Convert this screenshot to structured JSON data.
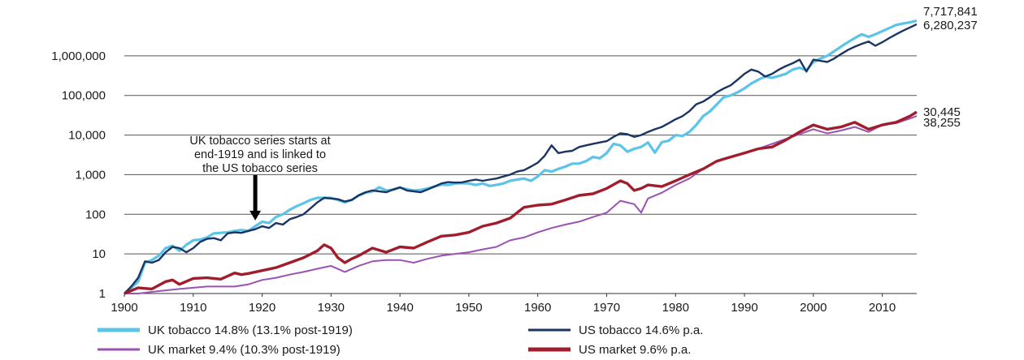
{
  "chart_data": {
    "type": "line",
    "yscale": "log",
    "ylim": [
      1,
      10000000
    ],
    "xlim": [
      1900,
      2015
    ],
    "grid": "horizontal",
    "legend_placement": "bottom",
    "x_ticks": [
      1900,
      1910,
      1920,
      1930,
      1940,
      1950,
      1960,
      1970,
      1980,
      1990,
      2000,
      2010
    ],
    "y_ticks": [
      {
        "value": 1,
        "label": "1"
      },
      {
        "value": 10,
        "label": "10"
      },
      {
        "value": 100,
        "label": "100"
      },
      {
        "value": 1000,
        "label": "1,000"
      },
      {
        "value": 10000,
        "label": "10,000"
      },
      {
        "value": 100000,
        "label": "100,000"
      },
      {
        "value": 1000000,
        "label": "1,000,000"
      }
    ],
    "annotation": {
      "lines": [
        "UK tobacco series starts at",
        "end-1919 and is linked to",
        "the US tobacco series"
      ],
      "arrow_x": 1919,
      "arrow_y": 70
    },
    "series": [
      {
        "name": "UK tobacco 14.8% (13.1% post-1919)",
        "color": "#5bc4e8",
        "end_label": "7,717,841",
        "x": [
          1900,
          1901,
          1902,
          1903,
          1904,
          1905,
          1906,
          1907,
          1908,
          1909,
          1910,
          1911,
          1912,
          1913,
          1914,
          1915,
          1916,
          1917,
          1918,
          1919,
          1920,
          1921,
          1922,
          1923,
          1924,
          1925,
          1926,
          1927,
          1928,
          1929,
          1930,
          1931,
          1932,
          1933,
          1934,
          1935,
          1936,
          1937,
          1938,
          1939,
          1940,
          1941,
          1942,
          1943,
          1944,
          1945,
          1946,
          1947,
          1948,
          1949,
          1950,
          1951,
          1952,
          1953,
          1954,
          1955,
          1956,
          1957,
          1958,
          1959,
          1960,
          1961,
          1962,
          1963,
          1964,
          1965,
          1966,
          1967,
          1968,
          1969,
          1970,
          1971,
          1972,
          1973,
          1974,
          1975,
          1976,
          1977,
          1978,
          1979,
          1980,
          1981,
          1982,
          1983,
          1984,
          1985,
          1986,
          1987,
          1988,
          1989,
          1990,
          1991,
          1992,
          1993,
          1994,
          1995,
          1996,
          1997,
          1998,
          1999,
          2000,
          2001,
          2002,
          2003,
          2004,
          2005,
          2006,
          2007,
          2008,
          2009,
          2010,
          2011,
          2012,
          2013,
          2014,
          2015
        ],
        "values": [
          1,
          1.4,
          2,
          6,
          7,
          9,
          14,
          16,
          12,
          17,
          22,
          23,
          26,
          33,
          34,
          35,
          38,
          40,
          38,
          50,
          65,
          60,
          85,
          100,
          130,
          160,
          190,
          230,
          260,
          260,
          260,
          230,
          200,
          230,
          300,
          350,
          380,
          480,
          400,
          420,
          470,
          430,
          400,
          410,
          450,
          500,
          560,
          550,
          600,
          610,
          600,
          550,
          600,
          520,
          550,
          600,
          700,
          750,
          800,
          700,
          900,
          1300,
          1200,
          1400,
          1600,
          1900,
          1900,
          2200,
          2800,
          2600,
          3500,
          6000,
          5500,
          3800,
          4500,
          5000,
          6500,
          3600,
          6600,
          7200,
          10000,
          9500,
          12000,
          18000,
          30000,
          40000,
          60000,
          90000,
          100000,
          120000,
          150000,
          200000,
          250000,
          300000,
          280000,
          310000,
          350000,
          450000,
          500000,
          430000,
          700000,
          850000,
          1000000,
          1300000,
          1700000,
          2200000,
          2800000,
          3500000,
          3000000,
          3500000,
          4200000,
          5000000,
          6000000,
          6500000,
          7000000,
          7717841
        ]
      },
      {
        "name": "US tobacco 14.6% p.a.",
        "color": "#1a3563",
        "end_label": "6,280,237",
        "x": [
          1900,
          1901,
          1902,
          1903,
          1904,
          1905,
          1906,
          1907,
          1908,
          1909,
          1910,
          1911,
          1912,
          1913,
          1914,
          1915,
          1916,
          1917,
          1918,
          1919,
          1920,
          1921,
          1922,
          1923,
          1924,
          1925,
          1926,
          1927,
          1928,
          1929,
          1930,
          1931,
          1932,
          1933,
          1934,
          1935,
          1936,
          1937,
          1938,
          1939,
          1940,
          1941,
          1942,
          1943,
          1944,
          1945,
          1946,
          1947,
          1948,
          1949,
          1950,
          1951,
          1952,
          1953,
          1954,
          1955,
          1956,
          1957,
          1958,
          1959,
          1960,
          1961,
          1962,
          1963,
          1964,
          1965,
          1966,
          1967,
          1968,
          1969,
          1970,
          1971,
          1972,
          1973,
          1974,
          1975,
          1976,
          1977,
          1978,
          1979,
          1980,
          1981,
          1982,
          1983,
          1984,
          1985,
          1986,
          1987,
          1988,
          1989,
          1990,
          1991,
          1992,
          1993,
          1994,
          1995,
          1996,
          1997,
          1998,
          1999,
          2000,
          2001,
          2002,
          2003,
          2004,
          2005,
          2006,
          2007,
          2008,
          2009,
          2010,
          2011,
          2012,
          2013,
          2014,
          2015
        ],
        "values": [
          1,
          1.5,
          2.5,
          6.5,
          6,
          7,
          11,
          15,
          14,
          11,
          14,
          20,
          24,
          25,
          22,
          33,
          35,
          34,
          38,
          42,
          50,
          45,
          60,
          55,
          75,
          85,
          100,
          140,
          200,
          260,
          250,
          240,
          210,
          230,
          300,
          360,
          400,
          380,
          360,
          420,
          480,
          400,
          380,
          360,
          420,
          500,
          600,
          650,
          630,
          640,
          700,
          750,
          700,
          750,
          800,
          900,
          1000,
          1200,
          1300,
          1600,
          2000,
          3000,
          5500,
          3500,
          3800,
          4000,
          5000,
          5500,
          6000,
          6500,
          7000,
          9000,
          11000,
          10500,
          9000,
          10000,
          12000,
          14000,
          16000,
          20000,
          25000,
          30000,
          40000,
          60000,
          70000,
          90000,
          120000,
          150000,
          180000,
          250000,
          350000,
          450000,
          400000,
          300000,
          350000,
          450000,
          550000,
          650000,
          800000,
          400000,
          800000,
          750000,
          700000,
          850000,
          1100000,
          1400000,
          1700000,
          2000000,
          2300000,
          1800000,
          2200000,
          2800000,
          3500000,
          4300000,
          5200000,
          6280237
        ]
      },
      {
        "name": "UK market 9.4% (10.3% post-1919)",
        "color": "#9a52b3",
        "end_label": "30,445",
        "x": [
          1900,
          1902,
          1904,
          1906,
          1908,
          1910,
          1912,
          1914,
          1916,
          1918,
          1920,
          1922,
          1924,
          1926,
          1928,
          1930,
          1932,
          1934,
          1936,
          1938,
          1940,
          1942,
          1944,
          1946,
          1948,
          1950,
          1952,
          1954,
          1956,
          1958,
          1960,
          1962,
          1964,
          1966,
          1968,
          1970,
          1972,
          1974,
          1975,
          1976,
          1978,
          1980,
          1982,
          1984,
          1986,
          1988,
          1990,
          1992,
          1994,
          1996,
          1998,
          2000,
          2002,
          2004,
          2006,
          2008,
          2010,
          2012,
          2014,
          2015
        ],
        "values": [
          1,
          1,
          1.1,
          1.2,
          1.3,
          1.4,
          1.5,
          1.5,
          1.5,
          1.7,
          2.2,
          2.5,
          3,
          3.5,
          4.2,
          5,
          3.5,
          5,
          6.5,
          7,
          7,
          6,
          7.5,
          9,
          10,
          11,
          13,
          15,
          22,
          26,
          35,
          45,
          55,
          65,
          85,
          110,
          220,
          180,
          110,
          250,
          350,
          550,
          800,
          1400,
          2200,
          2800,
          3600,
          4500,
          6000,
          8000,
          10500,
          14000,
          11000,
          13000,
          16000,
          12000,
          18000,
          20000,
          26000,
          30445
        ]
      },
      {
        "name": "US market 9.6% p.a.",
        "color": "#a01d2e",
        "end_label": "38,255",
        "x": [
          1900,
          1902,
          1904,
          1906,
          1907,
          1908,
          1910,
          1912,
          1914,
          1916,
          1917,
          1918,
          1920,
          1922,
          1924,
          1926,
          1928,
          1929,
          1930,
          1931,
          1932,
          1933,
          1934,
          1936,
          1938,
          1940,
          1942,
          1944,
          1946,
          1948,
          1950,
          1952,
          1954,
          1956,
          1958,
          1960,
          1962,
          1964,
          1966,
          1968,
          1970,
          1972,
          1973,
          1974,
          1975,
          1976,
          1978,
          1980,
          1982,
          1984,
          1986,
          1988,
          1990,
          1992,
          1994,
          1996,
          1998,
          2000,
          2002,
          2004,
          2006,
          2008,
          2010,
          2012,
          2014,
          2015
        ],
        "values": [
          1,
          1.4,
          1.3,
          2,
          2.2,
          1.7,
          2.4,
          2.5,
          2.3,
          3.3,
          3,
          3.2,
          3.8,
          4.5,
          6,
          8,
          12,
          17,
          14,
          8,
          6,
          7.5,
          9,
          14,
          11,
          15,
          14,
          20,
          28,
          30,
          35,
          50,
          60,
          80,
          150,
          170,
          180,
          230,
          300,
          330,
          450,
          700,
          600,
          400,
          450,
          550,
          500,
          700,
          1000,
          1400,
          2200,
          2800,
          3500,
          4500,
          5000,
          7500,
          12000,
          18000,
          14000,
          16000,
          21000,
          14000,
          18000,
          21000,
          30000,
          38255
        ]
      }
    ]
  }
}
